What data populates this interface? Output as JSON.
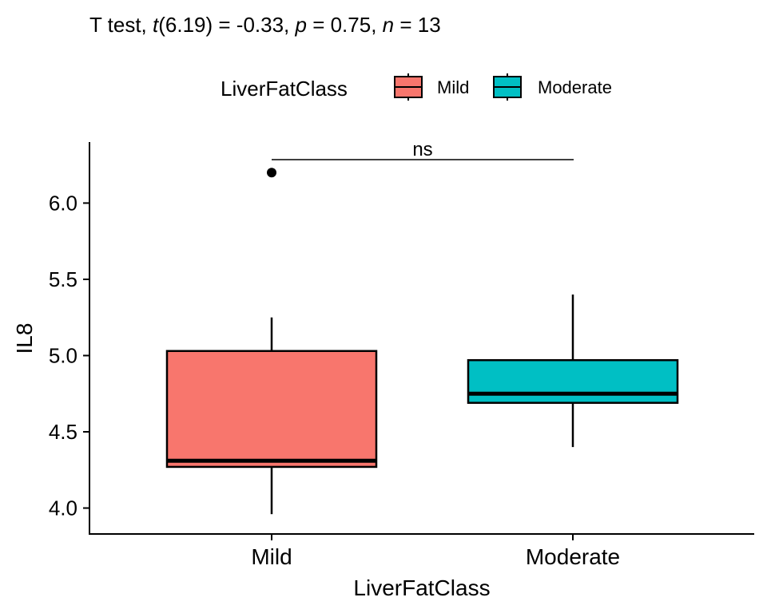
{
  "subtitle": {
    "prefix": "T test, ",
    "t_symbol": "t",
    "t_part": "(6.19) = -0.33, ",
    "p_symbol": "p",
    "p_part": " = 0.75, ",
    "n_symbol": "n",
    "n_part": " = 13"
  },
  "legend": {
    "title": "LiverFatClass",
    "position": "top",
    "items": [
      {
        "label": "Mild",
        "color": "#F8766D"
      },
      {
        "label": "Moderate",
        "color": "#00BFC4"
      }
    ]
  },
  "significance": {
    "label": "ns",
    "from": "Mild",
    "to": "Moderate"
  },
  "chart_data": {
    "type": "boxplot",
    "xlabel": "LiverFatClass",
    "ylabel": "IL8",
    "ylim": [
      3.83,
      6.4
    ],
    "yticks": [
      4.0,
      4.5,
      5.0,
      5.5,
      6.0
    ],
    "ytick_labels": [
      "4.0",
      "4.5",
      "5.0",
      "5.5",
      "6.0"
    ],
    "grid": false,
    "categories": [
      "Mild",
      "Moderate"
    ],
    "boxes": [
      {
        "category": "Mild",
        "fill": "#F8766D",
        "whisker_low": 3.96,
        "q1": 4.27,
        "median": 4.31,
        "q3": 5.03,
        "whisker_high": 5.25,
        "outliers": [
          6.2
        ]
      },
      {
        "category": "Moderate",
        "fill": "#00BFC4",
        "whisker_low": 4.4,
        "q1": 4.69,
        "median": 4.75,
        "q3": 4.97,
        "whisker_high": 5.4,
        "outliers": []
      }
    ]
  }
}
